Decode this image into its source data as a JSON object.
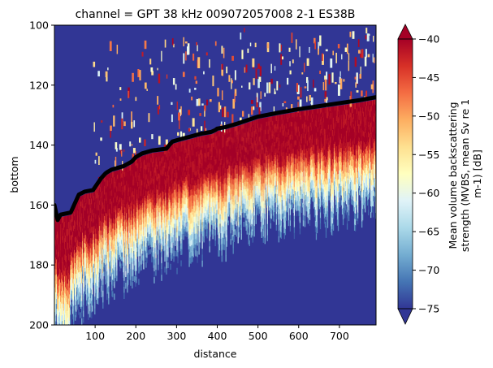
{
  "chart_data": {
    "type": "heatmap",
    "title": "channel = GPT  38 kHz 009072057008 2-1 ES38B",
    "xlabel": "distance",
    "ylabel": "bottom",
    "xlim": [
      0,
      790
    ],
    "ylim": [
      200,
      100
    ],
    "x_ticks": [
      100,
      200,
      300,
      400,
      500,
      600,
      700
    ],
    "y_ticks": [
      100,
      120,
      140,
      160,
      180,
      200
    ],
    "colorbar": {
      "label_lines": [
        "Mean volume backscattering",
        "strength (MVBS, mean Sv re 1",
        "m-1) [dB]"
      ],
      "vmin": -75,
      "vmax": -40,
      "ticks": [
        -40,
        -45,
        -50,
        -55,
        -60,
        -65,
        -70,
        -75
      ],
      "colormap": "RdYlBu_r",
      "extend": "both",
      "colors": [
        "#313695",
        "#4575b4",
        "#74add1",
        "#abd9e9",
        "#e0f3f8",
        "#ffffbf",
        "#fee090",
        "#fdae61",
        "#f46d43",
        "#d73027",
        "#a50026"
      ]
    },
    "background_color": "#313695",
    "bottom_line": {
      "color": "#000000",
      "x": [
        0,
        8,
        15,
        40,
        55,
        60,
        75,
        95,
        105,
        115,
        125,
        130,
        140,
        170,
        190,
        200,
        215,
        240,
        275,
        282,
        290,
        310,
        330,
        360,
        385,
        395,
        400,
        420,
        450,
        500,
        550,
        600,
        650,
        700,
        750,
        790
      ],
      "y": [
        160,
        165,
        163.2,
        162.5,
        158,
        156.5,
        155.5,
        155,
        153,
        151,
        149.5,
        149,
        148.2,
        147,
        145.5,
        144,
        142.8,
        141.8,
        141.2,
        140,
        138.8,
        138,
        137.3,
        136.2,
        135.6,
        135,
        134.5,
        134,
        132.8,
        130.5,
        129.2,
        128,
        127,
        126,
        125,
        124
      ]
    }
  }
}
